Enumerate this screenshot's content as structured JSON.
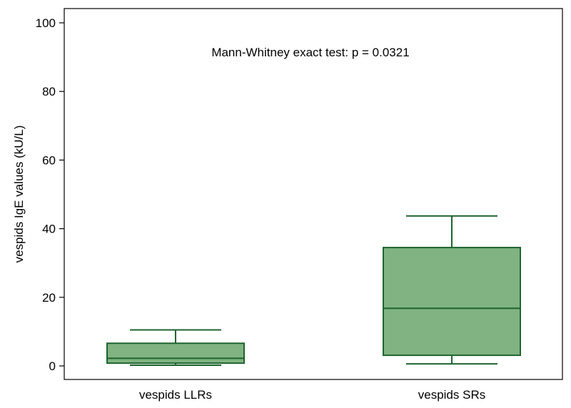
{
  "chart_data": {
    "type": "boxplot",
    "title": "",
    "annotation": "Mann-Whitney exact test: p = 0.0321",
    "ylabel": "vespids IgE values (kU/L)",
    "xlabel": "",
    "ylim": [
      0,
      100
    ],
    "yticks": [
      0,
      20,
      40,
      60,
      80,
      100
    ],
    "grid": false,
    "colors": {
      "fill": "#80b381",
      "stroke": "#1e6430"
    },
    "categories": [
      "vespids LLRs",
      "vespids SRs"
    ],
    "boxes": [
      {
        "label": "vespids LLRs",
        "min": 0.2,
        "q1": 0.8,
        "median": 2.2,
        "q3": 6.6,
        "max": 10.5
      },
      {
        "label": "vespids SRs",
        "min": 0.6,
        "q1": 3.1,
        "median": 16.8,
        "q3": 34.5,
        "max": 43.7
      }
    ]
  }
}
